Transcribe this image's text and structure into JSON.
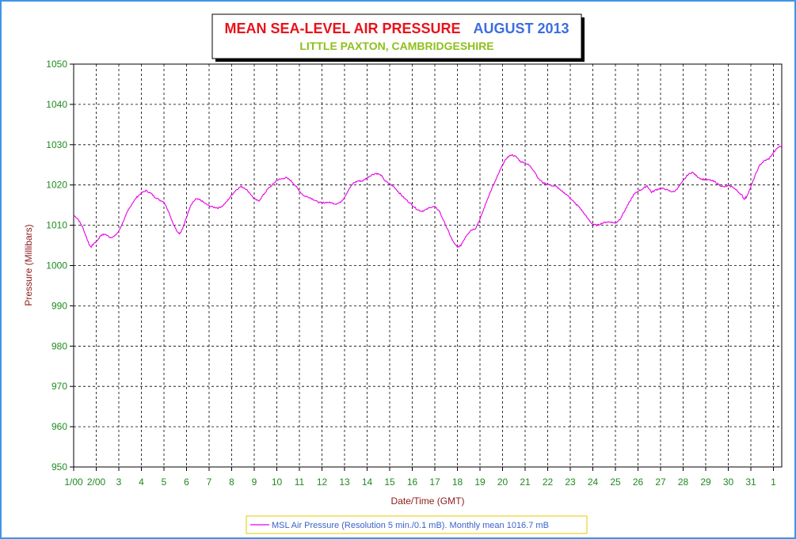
{
  "chart_data": {
    "type": "line",
    "title": "MEAN SEA-LEVEL AIR PRESSURE",
    "title_period": "AUGUST 2013",
    "subtitle": "LITTLE PAXTON, CAMBRIDGESHIRE",
    "xlabel": "Date/Time (GMT)",
    "ylabel": "Pressure (Millibars)",
    "ylim": [
      950,
      1050
    ],
    "xlim": [
      1,
      32.4
    ],
    "grid": true,
    "legend_position": "bottom",
    "yticks": [
      "950",
      "960",
      "970",
      "980",
      "990",
      "1000",
      "1010",
      "1020",
      "1030",
      "1040",
      "1050"
    ],
    "xticks": [
      "1/00",
      "2/00",
      "3",
      "4",
      "5",
      "6",
      "7",
      "8",
      "9",
      "10",
      "11",
      "12",
      "13",
      "14",
      "15",
      "16",
      "17",
      "18",
      "19",
      "20",
      "21",
      "22",
      "23",
      "24",
      "25",
      "26",
      "27",
      "28",
      "29",
      "30",
      "31",
      "1"
    ],
    "colors": {
      "series": "#e600e6",
      "frame": "#3f96e6",
      "grid": "#000000",
      "ticks": "#1f8a1f",
      "axis_title": "#8b1a1a",
      "legend_border": "#e8c800"
    },
    "series": [
      {
        "name": "MSL Air Pressure (Resolution 5 min./0.1 mB). Monthly mean 1016.7 mB",
        "points": [
          [
            1.0,
            1012.5
          ],
          [
            1.2,
            1011.5
          ],
          [
            1.4,
            1009.5
          ],
          [
            1.6,
            1006.5
          ],
          [
            1.75,
            1004.5
          ],
          [
            1.9,
            1005.5
          ],
          [
            2.05,
            1006.2
          ],
          [
            2.2,
            1007.5
          ],
          [
            2.4,
            1007.8
          ],
          [
            2.6,
            1007.0
          ],
          [
            2.8,
            1007.2
          ],
          [
            3.0,
            1008.5
          ],
          [
            3.2,
            1011.0
          ],
          [
            3.4,
            1013.5
          ],
          [
            3.6,
            1015.5
          ],
          [
            3.8,
            1017.0
          ],
          [
            4.0,
            1018.0
          ],
          [
            4.2,
            1018.6
          ],
          [
            4.4,
            1018.0
          ],
          [
            4.6,
            1017.0
          ],
          [
            4.8,
            1016.3
          ],
          [
            5.0,
            1015.8
          ],
          [
            5.2,
            1013.5
          ],
          [
            5.4,
            1010.5
          ],
          [
            5.6,
            1008.2
          ],
          [
            5.7,
            1008.0
          ],
          [
            5.85,
            1009.5
          ],
          [
            6.0,
            1012.0
          ],
          [
            6.2,
            1015.0
          ],
          [
            6.4,
            1016.5
          ],
          [
            6.6,
            1016.3
          ],
          [
            6.8,
            1015.5
          ],
          [
            7.0,
            1014.8
          ],
          [
            7.2,
            1014.5
          ],
          [
            7.4,
            1014.3
          ],
          [
            7.6,
            1014.8
          ],
          [
            7.8,
            1016.0
          ],
          [
            8.0,
            1017.5
          ],
          [
            8.2,
            1018.8
          ],
          [
            8.4,
            1019.6
          ],
          [
            8.6,
            1019.2
          ],
          [
            8.8,
            1018.0
          ],
          [
            9.0,
            1016.5
          ],
          [
            9.2,
            1016.0
          ],
          [
            9.4,
            1017.5
          ],
          [
            9.6,
            1019.0
          ],
          [
            9.8,
            1020.0
          ],
          [
            10.0,
            1021.2
          ],
          [
            10.2,
            1021.5
          ],
          [
            10.4,
            1021.8
          ],
          [
            10.6,
            1021.2
          ],
          [
            10.8,
            1020.0
          ],
          [
            11.0,
            1018.5
          ],
          [
            11.2,
            1017.3
          ],
          [
            11.4,
            1017.0
          ],
          [
            11.6,
            1016.5
          ],
          [
            11.8,
            1015.8
          ],
          [
            12.0,
            1015.5
          ],
          [
            12.2,
            1015.7
          ],
          [
            12.4,
            1015.6
          ],
          [
            12.6,
            1015.3
          ],
          [
            12.8,
            1015.6
          ],
          [
            13.0,
            1017.0
          ],
          [
            13.2,
            1019.0
          ],
          [
            13.4,
            1020.5
          ],
          [
            13.6,
            1021.0
          ],
          [
            13.8,
            1021.0
          ],
          [
            14.0,
            1021.8
          ],
          [
            14.2,
            1022.5
          ],
          [
            14.4,
            1022.9
          ],
          [
            14.6,
            1022.5
          ],
          [
            14.8,
            1021.0
          ],
          [
            15.0,
            1020.2
          ],
          [
            15.2,
            1019.5
          ],
          [
            15.4,
            1018.2
          ],
          [
            15.6,
            1017.0
          ],
          [
            15.8,
            1016.0
          ],
          [
            16.0,
            1015.0
          ],
          [
            16.2,
            1014.0
          ],
          [
            16.4,
            1013.5
          ],
          [
            16.6,
            1013.8
          ],
          [
            16.8,
            1014.5
          ],
          [
            17.0,
            1014.6
          ],
          [
            17.2,
            1013.5
          ],
          [
            17.4,
            1011.0
          ],
          [
            17.6,
            1008.5
          ],
          [
            17.8,
            1006.0
          ],
          [
            18.0,
            1004.5
          ],
          [
            18.15,
            1005.0
          ],
          [
            18.4,
            1007.5
          ],
          [
            18.6,
            1008.8
          ],
          [
            18.8,
            1009.2
          ],
          [
            19.0,
            1011.5
          ],
          [
            19.2,
            1014.5
          ],
          [
            19.4,
            1017.5
          ],
          [
            19.6,
            1020.0
          ],
          [
            19.8,
            1022.5
          ],
          [
            20.0,
            1025.0
          ],
          [
            20.2,
            1026.8
          ],
          [
            20.4,
            1027.5
          ],
          [
            20.6,
            1027.0
          ],
          [
            20.8,
            1025.8
          ],
          [
            21.0,
            1025.5
          ],
          [
            21.2,
            1024.8
          ],
          [
            21.4,
            1023.5
          ],
          [
            21.6,
            1021.5
          ],
          [
            21.8,
            1020.5
          ],
          [
            22.0,
            1020.2
          ],
          [
            22.2,
            1019.8
          ],
          [
            22.4,
            1019.6
          ],
          [
            22.6,
            1018.5
          ],
          [
            22.8,
            1017.8
          ],
          [
            23.0,
            1016.8
          ],
          [
            23.2,
            1015.5
          ],
          [
            23.4,
            1014.5
          ],
          [
            23.6,
            1013.0
          ],
          [
            23.8,
            1011.5
          ],
          [
            24.0,
            1010.2
          ],
          [
            24.2,
            1010.0
          ],
          [
            24.4,
            1010.5
          ],
          [
            24.6,
            1010.8
          ],
          [
            24.8,
            1010.8
          ],
          [
            25.0,
            1010.5
          ],
          [
            25.2,
            1011.5
          ],
          [
            25.4,
            1013.5
          ],
          [
            25.6,
            1015.5
          ],
          [
            25.8,
            1017.5
          ],
          [
            26.0,
            1018.5
          ],
          [
            26.2,
            1019.0
          ],
          [
            26.4,
            1019.8
          ],
          [
            26.6,
            1018.2
          ],
          [
            26.8,
            1018.8
          ],
          [
            27.0,
            1019.2
          ],
          [
            27.2,
            1019.0
          ],
          [
            27.4,
            1018.5
          ],
          [
            27.6,
            1018.3
          ],
          [
            27.8,
            1019.5
          ],
          [
            28.0,
            1021.0
          ],
          [
            28.2,
            1022.5
          ],
          [
            28.4,
            1023.2
          ],
          [
            28.6,
            1022.2
          ],
          [
            28.8,
            1021.5
          ],
          [
            29.0,
            1021.3
          ],
          [
            29.2,
            1021.2
          ],
          [
            29.4,
            1020.8
          ],
          [
            29.6,
            1020.0
          ],
          [
            29.8,
            1019.5
          ],
          [
            30.0,
            1019.8
          ],
          [
            30.2,
            1019.5
          ],
          [
            30.4,
            1018.5
          ],
          [
            30.6,
            1017.5
          ],
          [
            30.7,
            1016.5
          ],
          [
            30.8,
            1017.0
          ],
          [
            31.0,
            1019.5
          ],
          [
            31.2,
            1022.5
          ],
          [
            31.4,
            1025.0
          ],
          [
            31.6,
            1026.0
          ],
          [
            31.8,
            1026.5
          ],
          [
            32.0,
            1028.0
          ],
          [
            32.2,
            1029.3
          ],
          [
            32.4,
            1029.8
          ]
        ]
      }
    ]
  }
}
